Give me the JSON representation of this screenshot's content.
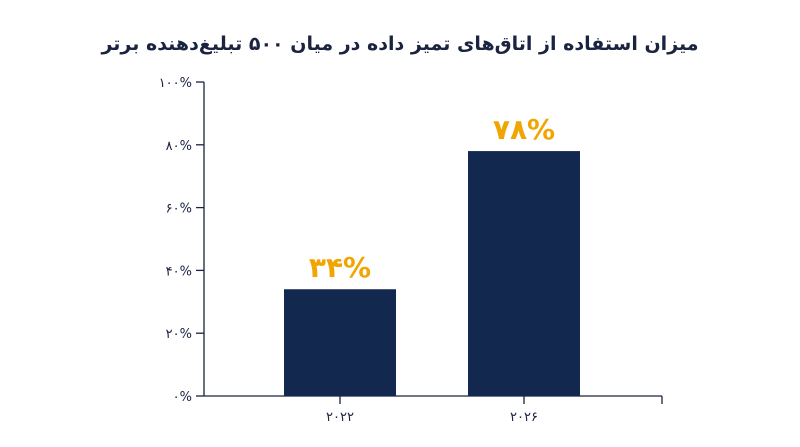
{
  "chart_data": {
    "type": "bar",
    "title": "میزان استفاده از اتاق‌های تمیز داده در میان ۵۰۰ تبلیغ‌دهنده برتر",
    "xlabel": "",
    "ylabel": "",
    "categories": [
      "۲۰۲۲",
      "۲۰۲۶"
    ],
    "values": [
      34,
      78
    ],
    "data_labels": [
      "۳۴%",
      "۷۸%"
    ],
    "ylim": [
      0,
      100
    ],
    "yticks": [
      0,
      20,
      40,
      60,
      80,
      100
    ],
    "ytick_labels": [
      "۰%",
      "۲۰%",
      "۴۰%",
      "۶۰%",
      "۸۰%",
      "۱۰۰%"
    ],
    "grid": false,
    "legend": "none",
    "colors": {
      "bar": "#13284f",
      "data_label": "#f0a500",
      "axis": "#1a2340",
      "text": "#1a2340"
    }
  }
}
